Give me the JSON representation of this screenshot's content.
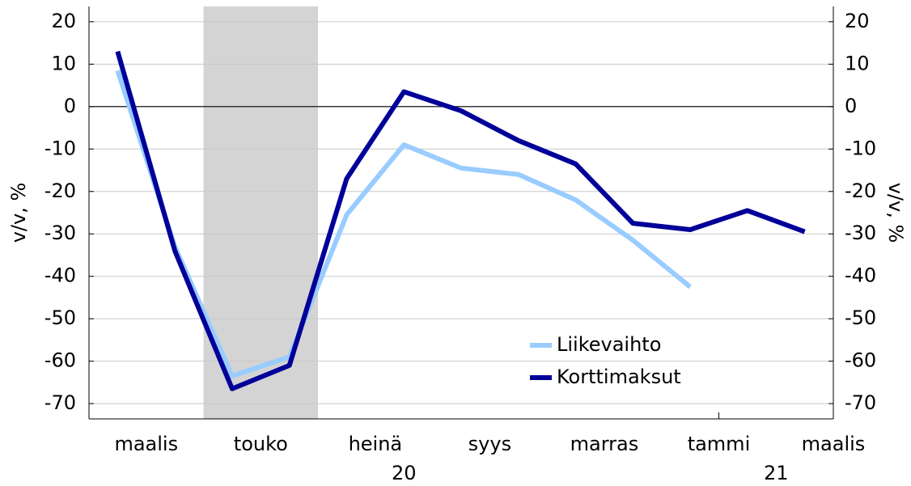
{
  "chart_data": {
    "type": "line",
    "ylabel": "v/v, %",
    "y2label": "v/v, %",
    "x": [
      -0.5,
      0.5,
      1.5,
      2.5,
      3.5,
      4.5,
      5.5,
      6.5,
      7.5,
      8.5,
      9.5,
      10.5,
      11.5
    ],
    "series": [
      {
        "name": "Liikevaihto",
        "color": "#99ccff",
        "values": [
          8.5,
          -33,
          -63.5,
          -59,
          -25.5,
          -9,
          -14.5,
          -16,
          -22,
          -31.5,
          -42.5,
          null,
          null
        ]
      },
      {
        "name": "Korttimaksut",
        "color": "#000099",
        "values": [
          13,
          -34,
          -66.5,
          -61,
          -17,
          3.5,
          -1,
          -8,
          -13.5,
          -27.5,
          -29,
          -24.5,
          -29.5
        ]
      }
    ],
    "xlim": [
      -1,
      12
    ],
    "xticks": [
      {
        "value": 0,
        "label": "maalis"
      },
      {
        "value": 2,
        "label": "touko"
      },
      {
        "value": 4,
        "label": "heinä"
      },
      {
        "value": 6,
        "label": "syys"
      },
      {
        "value": 8,
        "label": "marras"
      },
      {
        "value": 10,
        "label": "tammi"
      },
      {
        "value": 12,
        "label": "maalis"
      }
    ],
    "year_labels": [
      {
        "value": 4.5,
        "label": "20"
      },
      {
        "value": 11,
        "label": "21"
      }
    ],
    "year_start": 10,
    "shade": [
      1,
      3
    ],
    "ylim": [
      -73.6,
      23.6
    ],
    "yticks": [
      -70,
      -60,
      -50,
      -40,
      -30,
      -20,
      -10,
      0,
      10,
      20
    ],
    "y2lim": [
      -73.6,
      23.6
    ],
    "y2ticks": [
      -70,
      -60,
      -50,
      -40,
      -30,
      -20,
      -10,
      0,
      10,
      20
    ],
    "grid": true,
    "legend": "lower right"
  }
}
